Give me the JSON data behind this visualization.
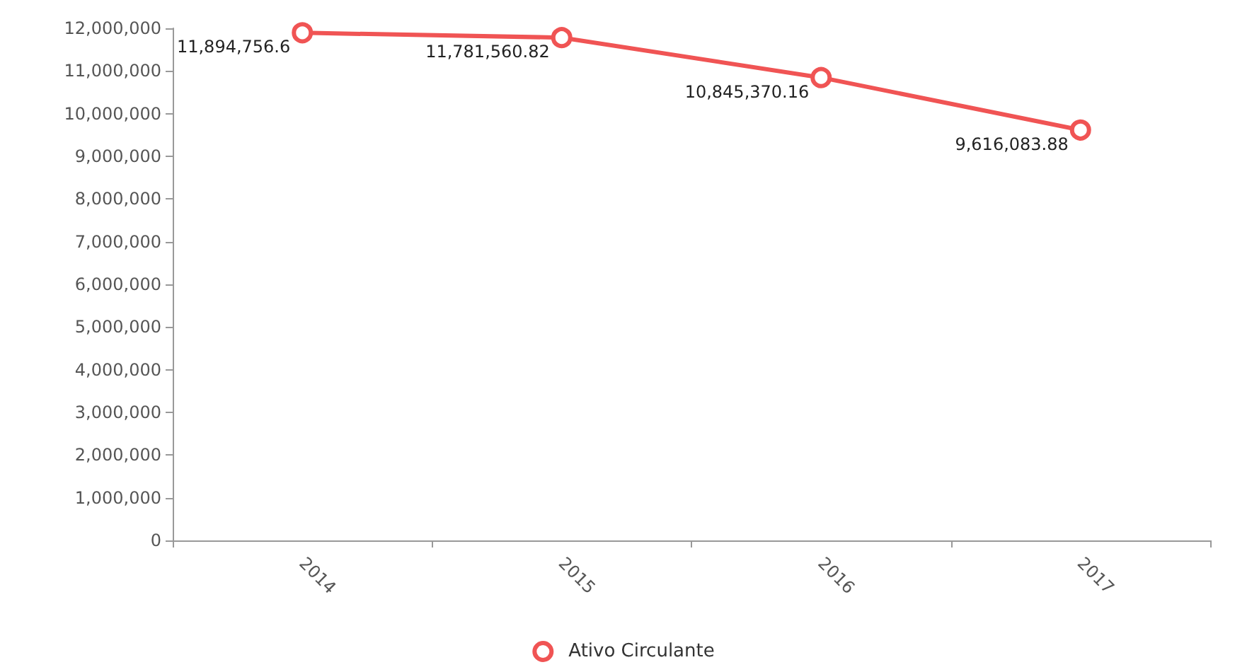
{
  "chart_data": {
    "type": "line",
    "categories": [
      "2014",
      "2015",
      "2016",
      "2017"
    ],
    "series": [
      {
        "name": "Ativo Circulante",
        "color": "#f05454",
        "values": [
          11894756.6,
          11781560.82,
          10845370.16,
          9616083.88
        ],
        "value_labels": [
          "11,894,756.6",
          "11,781,560.82",
          "10,845,370.16",
          "9,616,083.88"
        ]
      }
    ],
    "ylim": [
      0,
      12000000
    ],
    "yticks": [
      0,
      {
        "value": 1000000,
        "label": "1,000,000"
      },
      {
        "value": 2000000,
        "label": "2,000,000"
      },
      {
        "value": 3000000,
        "label": "3,000,000"
      },
      {
        "value": 4000000,
        "label": "4,000,000"
      },
      {
        "value": 5000000,
        "label": "5,000,000"
      },
      {
        "value": 6000000,
        "label": "6,000,000"
      },
      {
        "value": 7000000,
        "label": "7,000,000"
      },
      {
        "value": 8000000,
        "label": "8,000,000"
      },
      {
        "value": 9000000,
        "label": "9,000,000"
      },
      {
        "value": 10000000,
        "label": "10,000,000"
      },
      {
        "value": 11000000,
        "label": "11,000,000"
      },
      {
        "value": 12000000,
        "label": "12,000,000"
      }
    ],
    "grid": false,
    "legend": "bottom",
    "marker": "circle",
    "line_style": "solid"
  }
}
